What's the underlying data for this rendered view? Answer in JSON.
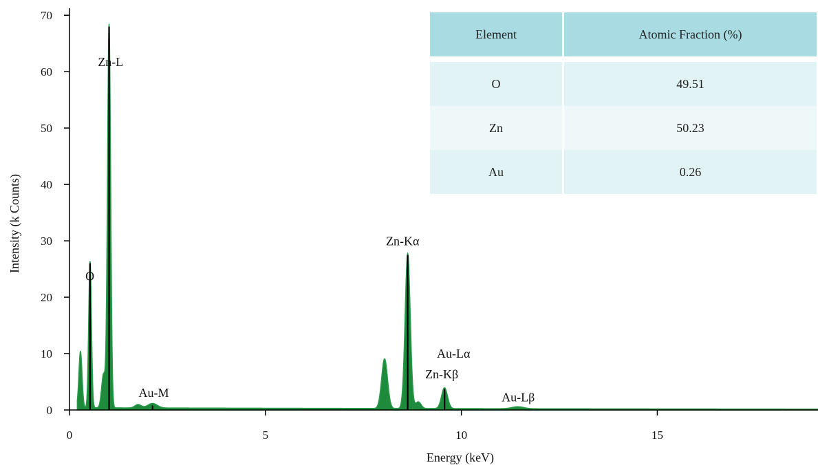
{
  "chart_data": {
    "type": "area",
    "xlabel": "Energy (keV)",
    "ylabel": "Intensity (k Counts)",
    "xlim": [
      0,
      19.1
    ],
    "ylim": [
      0,
      71
    ],
    "x_ticks": [
      0,
      5,
      10,
      15
    ],
    "y_ticks": [
      0,
      10,
      20,
      30,
      40,
      50,
      60,
      70
    ],
    "grid": false,
    "fill_color": "#1e8a3c",
    "line_color": "#000000",
    "background_level": 0.4,
    "peaks": [
      {
        "x": 0.28,
        "height": 10.0,
        "width": 0.04
      },
      {
        "x": 0.525,
        "height": 26.0,
        "width": 0.035
      },
      {
        "x": 0.87,
        "height": 6.0,
        "width": 0.05
      },
      {
        "x": 1.01,
        "height": 68.0,
        "width": 0.04
      },
      {
        "x": 1.75,
        "height": 0.6,
        "width": 0.08
      },
      {
        "x": 2.12,
        "height": 0.8,
        "width": 0.12
      },
      {
        "x": 8.04,
        "height": 8.8,
        "width": 0.075
      },
      {
        "x": 8.63,
        "height": 27.5,
        "width": 0.065
      },
      {
        "x": 8.9,
        "height": 1.2,
        "width": 0.07
      },
      {
        "x": 9.57,
        "height": 3.7,
        "width": 0.075
      },
      {
        "x": 11.44,
        "height": 0.35,
        "width": 0.15
      }
    ],
    "peak_lines": [
      {
        "x": 0.525,
        "y": 26.0
      },
      {
        "x": 1.01,
        "y": 68.0
      },
      {
        "x": 2.12,
        "y": 0.8
      },
      {
        "x": 8.63,
        "y": 27.5
      },
      {
        "x": 9.57,
        "y": 3.7
      }
    ],
    "annotations": [
      {
        "text": "Zn-L",
        "x": 1.05,
        "y": 61.0
      },
      {
        "text": "O",
        "x": 0.52,
        "y": 23.0
      },
      {
        "text": "Au-M",
        "x": 2.15,
        "y": 2.3
      },
      {
        "text": "Zn-Kα",
        "x": 8.5,
        "y": 29.2
      },
      {
        "text": "Au-Lα",
        "x": 9.8,
        "y": 9.3
      },
      {
        "text": "Zn-Kβ",
        "x": 9.5,
        "y": 5.6
      },
      {
        "text": "Au-Lβ",
        "x": 11.45,
        "y": 1.5
      }
    ]
  },
  "table": {
    "headers": [
      "Element",
      "Atomic Fraction (%)"
    ],
    "rows": [
      [
        "O",
        "49.51"
      ],
      [
        "Zn",
        "50.23"
      ],
      [
        "Au",
        "0.26"
      ]
    ]
  }
}
